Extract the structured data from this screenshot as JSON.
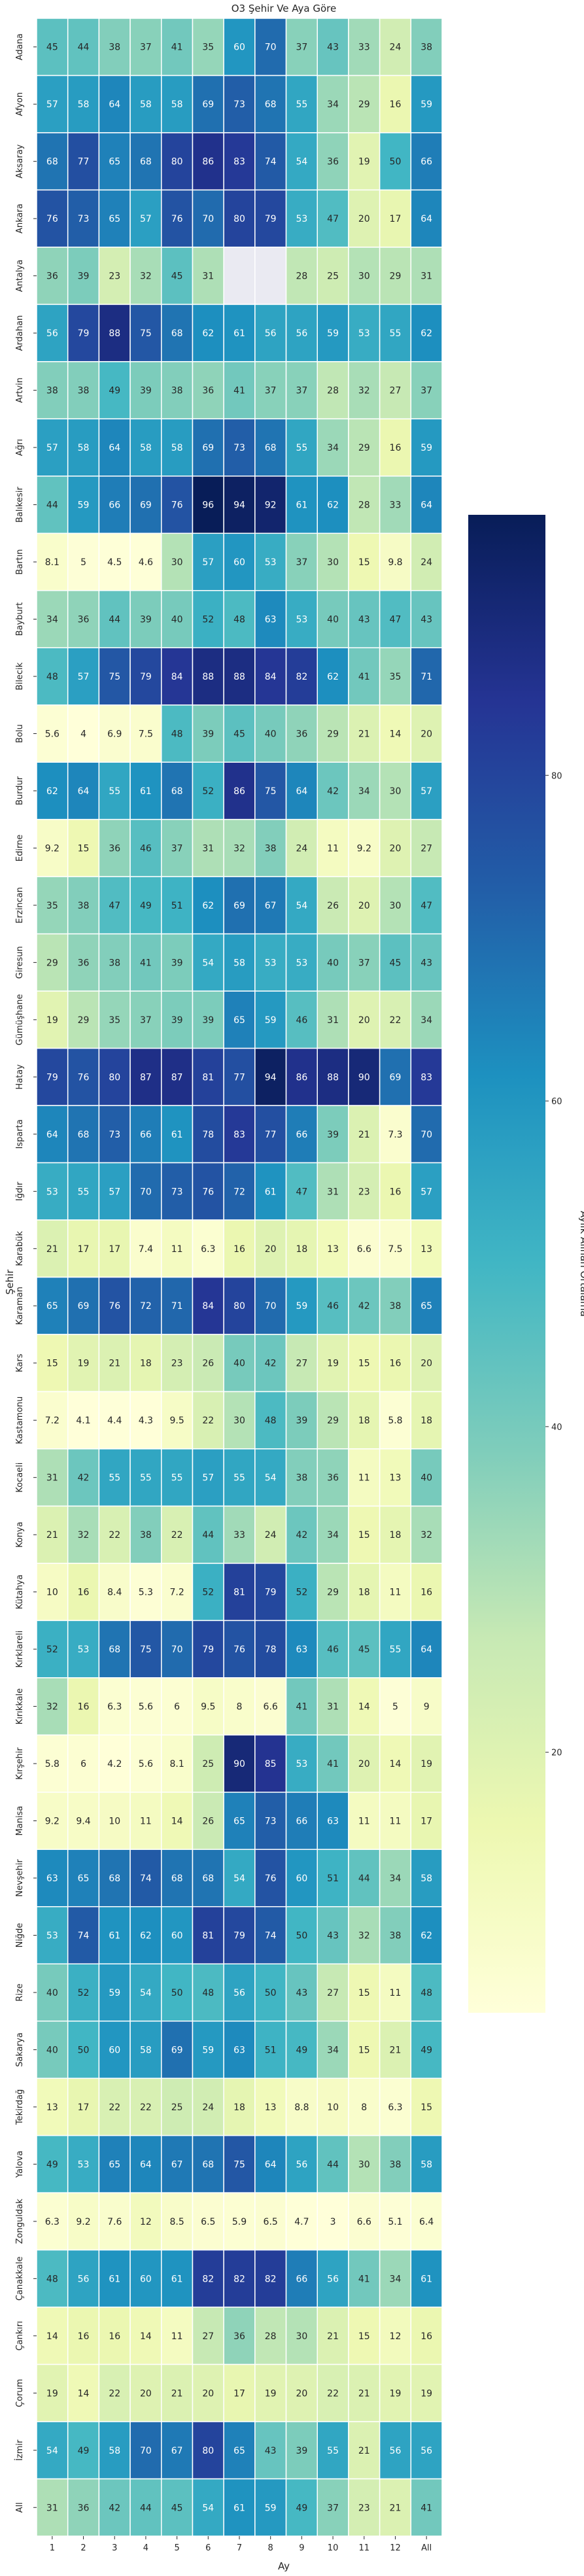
{
  "chart_data": {
    "type": "heatmap",
    "title": "O3 Şehir Ve Aya Göre",
    "xlabel": "Ay",
    "ylabel": "Şehir",
    "colorbar_label": "Aylık Alınan Ortalama",
    "colorbar_ticks": [
      20,
      40,
      60,
      80
    ],
    "colormap": "YlGnBu",
    "missing_color": "#eaeaf2",
    "vmin": 4,
    "vmax": 96,
    "columns": [
      "1",
      "2",
      "3",
      "4",
      "5",
      "6",
      "7",
      "8",
      "9",
      "10",
      "11",
      "12",
      "All"
    ],
    "rows": [
      {
        "city": "Adana",
        "values": [
          "45",
          "44",
          "38",
          "37",
          "41",
          "35",
          "60",
          "70",
          "37",
          "43",
          "33",
          "24",
          "38"
        ]
      },
      {
        "city": "Afyon",
        "values": [
          "57",
          "58",
          "64",
          "58",
          "58",
          "69",
          "73",
          "68",
          "55",
          "34",
          "29",
          "16",
          "59"
        ]
      },
      {
        "city": "Aksaray",
        "values": [
          "68",
          "77",
          "65",
          "68",
          "80",
          "86",
          "83",
          "74",
          "54",
          "36",
          "19",
          "50",
          "66"
        ]
      },
      {
        "city": "Ankara",
        "values": [
          "76",
          "73",
          "65",
          "57",
          "76",
          "70",
          "80",
          "79",
          "53",
          "47",
          "20",
          "17",
          "64"
        ]
      },
      {
        "city": "Antalya",
        "values": [
          "36",
          "39",
          "23",
          "32",
          "45",
          "31",
          null,
          null,
          "28",
          "25",
          "30",
          "29",
          "31"
        ]
      },
      {
        "city": "Ardahan",
        "values": [
          "56",
          "79",
          "88",
          "75",
          "68",
          "62",
          "61",
          "56",
          "56",
          "59",
          "53",
          "55",
          "62"
        ]
      },
      {
        "city": "Artvin",
        "values": [
          "38",
          "38",
          "49",
          "39",
          "38",
          "36",
          "41",
          "37",
          "37",
          "28",
          "32",
          "27",
          "37"
        ]
      },
      {
        "city": "Ağrı",
        "values": [
          "57",
          "58",
          "64",
          "58",
          "58",
          "69",
          "73",
          "68",
          "55",
          "34",
          "29",
          "16",
          "59"
        ]
      },
      {
        "city": "Balıkesir",
        "values": [
          "44",
          "59",
          "66",
          "69",
          "76",
          "96",
          "94",
          "92",
          "61",
          "62",
          "28",
          "33",
          "64"
        ]
      },
      {
        "city": "Bartın",
        "values": [
          "8.1",
          "5",
          "4.5",
          "4.6",
          "30",
          "57",
          "60",
          "53",
          "37",
          "30",
          "15",
          "9.8",
          "24"
        ]
      },
      {
        "city": "Bayburt",
        "values": [
          "34",
          "36",
          "44",
          "39",
          "40",
          "52",
          "48",
          "63",
          "53",
          "40",
          "43",
          "47",
          "43"
        ]
      },
      {
        "city": "Bilecik",
        "values": [
          "48",
          "57",
          "75",
          "79",
          "84",
          "88",
          "88",
          "84",
          "82",
          "62",
          "41",
          "35",
          "71"
        ]
      },
      {
        "city": "Bolu",
        "values": [
          "5.6",
          "4",
          "6.9",
          "7.5",
          "48",
          "39",
          "45",
          "40",
          "36",
          "29",
          "21",
          "14",
          "20"
        ]
      },
      {
        "city": "Burdur",
        "values": [
          "62",
          "64",
          "55",
          "61",
          "68",
          "52",
          "86",
          "75",
          "64",
          "42",
          "34",
          "30",
          "57"
        ]
      },
      {
        "city": "Edirne",
        "values": [
          "9.2",
          "15",
          "36",
          "46",
          "37",
          "31",
          "32",
          "38",
          "24",
          "11",
          "9.2",
          "20",
          "27"
        ]
      },
      {
        "city": "Erzincan",
        "values": [
          "35",
          "38",
          "47",
          "49",
          "51",
          "62",
          "69",
          "67",
          "54",
          "26",
          "20",
          "30",
          "47"
        ]
      },
      {
        "city": "Giresun",
        "values": [
          "29",
          "36",
          "38",
          "41",
          "39",
          "54",
          "58",
          "53",
          "53",
          "40",
          "37",
          "45",
          "43"
        ]
      },
      {
        "city": "Gümüşhane",
        "values": [
          "19",
          "29",
          "35",
          "37",
          "39",
          "39",
          "65",
          "59",
          "46",
          "31",
          "20",
          "22",
          "34"
        ]
      },
      {
        "city": "Hatay",
        "values": [
          "79",
          "76",
          "80",
          "87",
          "87",
          "81",
          "77",
          "94",
          "86",
          "88",
          "90",
          "69",
          "83"
        ]
      },
      {
        "city": "Isparta",
        "values": [
          "64",
          "68",
          "73",
          "66",
          "61",
          "78",
          "83",
          "77",
          "66",
          "39",
          "21",
          "7.3",
          "70"
        ]
      },
      {
        "city": "Iğdır",
        "values": [
          "53",
          "55",
          "57",
          "70",
          "73",
          "76",
          "72",
          "61",
          "47",
          "31",
          "23",
          "16",
          "57"
        ]
      },
      {
        "city": "Karabük",
        "values": [
          "21",
          "17",
          "17",
          "7.4",
          "11",
          "6.3",
          "16",
          "20",
          "18",
          "13",
          "6.6",
          "7.5",
          "13"
        ]
      },
      {
        "city": "Karaman",
        "values": [
          "65",
          "69",
          "76",
          "72",
          "71",
          "84",
          "80",
          "70",
          "59",
          "46",
          "42",
          "38",
          "65"
        ]
      },
      {
        "city": "Kars",
        "values": [
          "15",
          "19",
          "21",
          "18",
          "23",
          "26",
          "40",
          "42",
          "27",
          "19",
          "15",
          "16",
          "20"
        ]
      },
      {
        "city": "Kastamonu",
        "values": [
          "7.2",
          "4.1",
          "4.4",
          "4.3",
          "9.5",
          "22",
          "30",
          "48",
          "39",
          "29",
          "18",
          "5.8",
          "18"
        ]
      },
      {
        "city": "Kocaeli",
        "values": [
          "31",
          "42",
          "55",
          "55",
          "55",
          "57",
          "55",
          "54",
          "38",
          "36",
          "11",
          "13",
          "40"
        ]
      },
      {
        "city": "Konya",
        "values": [
          "21",
          "32",
          "22",
          "38",
          "22",
          "44",
          "33",
          "24",
          "42",
          "34",
          "15",
          "18",
          "32"
        ]
      },
      {
        "city": "Kütahya",
        "values": [
          "10",
          "16",
          "8.4",
          "5.3",
          "7.2",
          "52",
          "81",
          "79",
          "52",
          "29",
          "18",
          "11",
          "16"
        ]
      },
      {
        "city": "Kırklareli",
        "values": [
          "52",
          "53",
          "68",
          "75",
          "70",
          "79",
          "76",
          "78",
          "63",
          "46",
          "45",
          "55",
          "64"
        ]
      },
      {
        "city": "Kırıkkale",
        "values": [
          "32",
          "16",
          "6.3",
          "5.6",
          "6",
          "9.5",
          "8",
          "6.6",
          "41",
          "31",
          "14",
          "5",
          "9"
        ]
      },
      {
        "city": "Kırşehir",
        "values": [
          "5.8",
          "6",
          "4.2",
          "5.6",
          "8.1",
          "25",
          "90",
          "85",
          "53",
          "41",
          "20",
          "14",
          "19"
        ]
      },
      {
        "city": "Manisa",
        "values": [
          "9.2",
          "9.4",
          "10",
          "11",
          "14",
          "26",
          "65",
          "73",
          "66",
          "63",
          "11",
          "11",
          "17"
        ]
      },
      {
        "city": "Nevşehir",
        "values": [
          "63",
          "65",
          "68",
          "74",
          "68",
          "68",
          "54",
          "76",
          "60",
          "51",
          "44",
          "34",
          "58"
        ]
      },
      {
        "city": "Niğde",
        "values": [
          "53",
          "74",
          "61",
          "62",
          "60",
          "81",
          "79",
          "74",
          "50",
          "43",
          "32",
          "38",
          "62"
        ]
      },
      {
        "city": "Rize",
        "values": [
          "40",
          "52",
          "59",
          "54",
          "50",
          "48",
          "56",
          "50",
          "43",
          "27",
          "15",
          "11",
          "48"
        ]
      },
      {
        "city": "Sakarya",
        "values": [
          "40",
          "50",
          "60",
          "58",
          "69",
          "59",
          "63",
          "51",
          "49",
          "34",
          "15",
          "21",
          "49"
        ]
      },
      {
        "city": "Tekirdağ",
        "values": [
          "13",
          "17",
          "22",
          "22",
          "25",
          "24",
          "18",
          "13",
          "8.8",
          "10",
          "8",
          "6.3",
          "15"
        ]
      },
      {
        "city": "Yalova",
        "values": [
          "49",
          "53",
          "65",
          "64",
          "67",
          "68",
          "75",
          "64",
          "56",
          "44",
          "30",
          "38",
          "58"
        ]
      },
      {
        "city": "Zonguldak",
        "values": [
          "6.3",
          "9.2",
          "7.6",
          "12",
          "8.5",
          "6.5",
          "5.9",
          "6.5",
          "4.7",
          "3",
          "6.6",
          "5.1",
          "6.4"
        ]
      },
      {
        "city": "Çanakkale",
        "values": [
          "48",
          "56",
          "61",
          "60",
          "61",
          "82",
          "82",
          "82",
          "66",
          "56",
          "41",
          "34",
          "61"
        ]
      },
      {
        "city": "Çankırı",
        "values": [
          "14",
          "16",
          "16",
          "14",
          "11",
          "27",
          "36",
          "28",
          "30",
          "21",
          "15",
          "12",
          "16"
        ]
      },
      {
        "city": "Çorum",
        "values": [
          "19",
          "14",
          "22",
          "20",
          "21",
          "20",
          "17",
          "19",
          "20",
          "22",
          "21",
          "19",
          "19"
        ]
      },
      {
        "city": "İzmir",
        "values": [
          "54",
          "49",
          "58",
          "70",
          "67",
          "80",
          "65",
          "43",
          "39",
          "55",
          "21",
          "56",
          "56"
        ]
      },
      {
        "city": "All",
        "values": [
          "31",
          "36",
          "42",
          "44",
          "45",
          "54",
          "61",
          "59",
          "49",
          "37",
          "23",
          "21",
          "41"
        ]
      }
    ]
  }
}
